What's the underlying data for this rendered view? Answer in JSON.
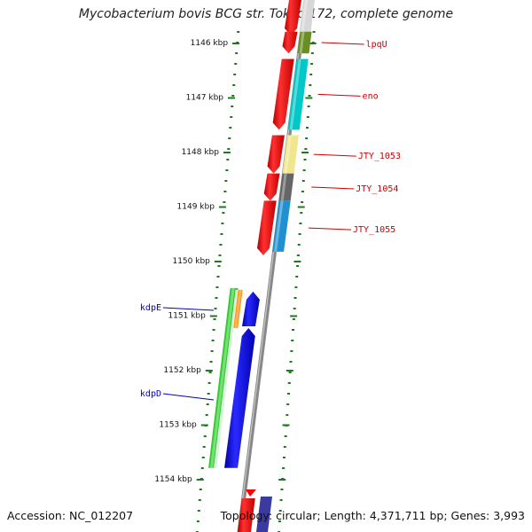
{
  "title": "Mycobacterium bovis BCG str. Tokyo 172, complete genome",
  "footer": {
    "accession": "Accession: NC_012207",
    "summary": "Topology: circular; Length: 4,371,711 bp; Genes: 3,993"
  },
  "ticks": [
    {
      "label": "1146 kbp",
      "kbp": 1146
    },
    {
      "label": "1147 kbp",
      "kbp": 1147
    },
    {
      "label": "1148 kbp",
      "kbp": 1148
    },
    {
      "label": "1149 kbp",
      "kbp": 1149
    },
    {
      "label": "1150 kbp",
      "kbp": 1150
    },
    {
      "label": "1151 kbp",
      "kbp": 1151
    },
    {
      "label": "1152 kbp",
      "kbp": 1152
    },
    {
      "label": "1153 kbp",
      "kbp": 1153
    },
    {
      "label": "1154 kbp",
      "kbp": 1154
    }
  ],
  "genes": [
    {
      "name": "lpqU",
      "strand": "forward",
      "start_kbp": 1145.8,
      "end_kbp": 1146.2,
      "feature_color": "#6b8e23"
    },
    {
      "name": "eno",
      "strand": "forward",
      "start_kbp": 1146.3,
      "end_kbp": 1147.6,
      "feature_color": "#00c8c8"
    },
    {
      "name": "JTY_1053",
      "strand": "forward",
      "start_kbp": 1147.7,
      "end_kbp": 1148.4,
      "feature_color": "#f0e68c"
    },
    {
      "name": "JTY_1054",
      "strand": "forward",
      "start_kbp": 1148.4,
      "end_kbp": 1148.9,
      "feature_color": "#666666"
    },
    {
      "name": "JTY_1055",
      "strand": "forward",
      "start_kbp": 1148.9,
      "end_kbp": 1149.9,
      "feature_color": "#2090d0"
    },
    {
      "name": "kdpE",
      "strand": "reverse",
      "start_kbp": 1150.6,
      "end_kbp": 1151.3,
      "feature_color": "#ff8c00"
    },
    {
      "name": "kdpD",
      "strand": "reverse",
      "start_kbp": 1151.3,
      "end_kbp": 1153.8,
      "feature_color": "#32cd32"
    }
  ],
  "colors": {
    "forward_cds": "#ff0000",
    "reverse_cds": "#0000ff",
    "forward_label": "#cc0000",
    "reverse_label": "#0000cc",
    "backbone": "#888888",
    "tick": "#1e7a1e"
  }
}
